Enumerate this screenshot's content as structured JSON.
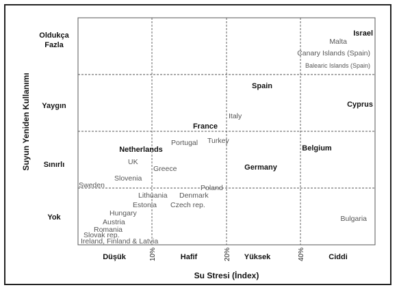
{
  "chart_data": {
    "type": "scatter",
    "title": "",
    "xlabel": "Su Stresi (İndex)",
    "ylabel": "Suyun Yeniden Kullanımı",
    "x_tick_labels": [
      "10%",
      "20%",
      "40%"
    ],
    "x_categories": [
      "Düşük",
      "Hafif",
      "Yüksek",
      "Ciddi"
    ],
    "y_categories": [
      "Oldukça\nFazla",
      "Yaygın",
      "Sınırlı",
      "Yok"
    ],
    "points": [
      {
        "label": "Israel",
        "bold": true
      },
      {
        "label": "Malta",
        "bold": false
      },
      {
        "label": "Canary Islands (Spain)",
        "bold": false
      },
      {
        "label": "Balearic Islands (Spain)",
        "bold": false
      },
      {
        "label": "Spain",
        "bold": true
      },
      {
        "label": "Cyprus",
        "bold": true
      },
      {
        "label": "Italy",
        "bold": false
      },
      {
        "label": "France",
        "bold": true
      },
      {
        "label": "Portugal",
        "bold": false
      },
      {
        "label": "Turkey",
        "bold": false
      },
      {
        "label": "Netherlands",
        "bold": true
      },
      {
        "label": "Belgium",
        "bold": true
      },
      {
        "label": "UK",
        "bold": false
      },
      {
        "label": "Greece",
        "bold": false
      },
      {
        "label": "Germany",
        "bold": true
      },
      {
        "label": "Slovenia",
        "bold": false
      },
      {
        "label": "Sweden",
        "bold": false
      },
      {
        "label": "Poland",
        "bold": false
      },
      {
        "label": "Lithuania",
        "bold": false
      },
      {
        "label": "Denmark",
        "bold": false
      },
      {
        "label": "Estonia",
        "bold": false
      },
      {
        "label": "Czech rep.",
        "bold": false
      },
      {
        "label": "Hungary",
        "bold": false
      },
      {
        "label": "Austria",
        "bold": false
      },
      {
        "label": "Romania",
        "bold": false
      },
      {
        "label": "Slovak rep.",
        "bold": false
      },
      {
        "label": "Ireland, Finland & Latvia",
        "bold": false
      },
      {
        "label": "Bulgaria",
        "bold": false
      }
    ]
  }
}
